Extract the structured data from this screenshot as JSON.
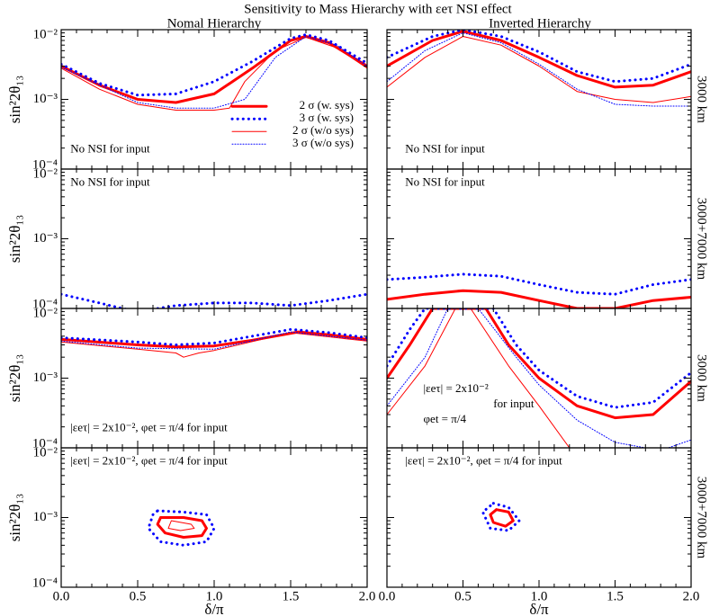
{
  "title": "Sensitivity to Mass Hierarchy with εeτ NSI effect",
  "column_titles": [
    "Nomal Hierarchy",
    "Inverted Hierarchy"
  ],
  "chart_data": [
    {
      "type": "line",
      "log_y": true,
      "xlim": [
        0,
        2
      ],
      "ylim": [
        0.0001,
        0.01
      ],
      "xticks": [
        0,
        0.5,
        1,
        1.5,
        2
      ],
      "yticks": [
        {
          "value": 0.0001,
          "label": "10⁻⁴"
        },
        {
          "value": 0.001,
          "label": "10⁻³"
        },
        {
          "value": 0.01,
          "label": "10⁻²"
        }
      ],
      "ylabel": "sin²2θ₁₃",
      "annotations": [
        "No NSI  for input"
      ],
      "legend": "center right",
      "series": [
        {
          "name": "2 σ (w. sys)",
          "color": "#ff0000",
          "width": 3,
          "dash": "solid",
          "x": [
            0,
            0.25,
            0.5,
            0.75,
            1,
            1.25,
            1.5,
            1.6,
            1.75,
            2
          ],
          "values": [
            0.003,
            0.0016,
            0.001,
            0.0009,
            0.0012,
            0.0028,
            0.007,
            0.008,
            0.0065,
            0.003
          ]
        },
        {
          "name": "3 σ (w. sys)",
          "color": "#0000ff",
          "width": 3,
          "dash": "dot",
          "x": [
            0,
            0.25,
            0.5,
            0.75,
            1,
            1.25,
            1.5,
            1.6,
            1.75,
            2
          ],
          "values": [
            0.0032,
            0.0017,
            0.00115,
            0.0012,
            0.0018,
            0.0035,
            0.0075,
            0.0085,
            0.007,
            0.0033
          ]
        },
        {
          "name": "2 σ (w/o sys)",
          "color": "#ff0000",
          "width": 1,
          "dash": "solid",
          "x": [
            0,
            0.25,
            0.5,
            0.75,
            1,
            1.1,
            1.2,
            1.4,
            1.6,
            1.8,
            2
          ],
          "values": [
            0.0028,
            0.0014,
            0.00085,
            0.0007,
            0.0007,
            0.00075,
            0.0018,
            0.005,
            0.0078,
            0.0055,
            0.0028
          ]
        },
        {
          "name": "3 σ (w/o sys)",
          "color": "#0000ff",
          "width": 1,
          "dash": "dot",
          "x": [
            0,
            0.5,
            0.75,
            1,
            1.2,
            1.4,
            1.6,
            1.8,
            2
          ],
          "values": [
            0.0029,
            0.0009,
            0.00075,
            0.00075,
            0.001,
            0.004,
            0.008,
            0.006,
            0.003
          ]
        }
      ]
    },
    {
      "type": "line",
      "log_y": true,
      "xlim": [
        0,
        2
      ],
      "ylim": [
        0.0001,
        0.01
      ],
      "xticks": [
        0,
        0.5,
        1,
        1.5,
        2
      ],
      "yticks": [
        0.0001,
        0.001,
        0.01
      ],
      "side_label": "3000 km",
      "annotations": [
        "No NSI  for input"
      ],
      "series": [
        {
          "color": "#ff0000",
          "width": 3,
          "dash": "solid",
          "x": [
            0,
            0.3,
            0.5,
            0.75,
            1,
            1.25,
            1.5,
            1.75,
            2
          ],
          "values": [
            0.003,
            0.007,
            0.0095,
            0.007,
            0.004,
            0.0022,
            0.0015,
            0.0016,
            0.0025
          ]
        },
        {
          "color": "#0000ff",
          "width": 3,
          "dash": "dot",
          "x": [
            0,
            0.3,
            0.5,
            0.75,
            1,
            1.25,
            1.5,
            1.75,
            2
          ],
          "values": [
            0.004,
            0.008,
            0.01,
            0.008,
            0.0048,
            0.0025,
            0.0018,
            0.002,
            0.0032
          ]
        },
        {
          "color": "#ff0000",
          "width": 1,
          "dash": "solid",
          "x": [
            0,
            0.25,
            0.5,
            0.75,
            1,
            1.25,
            1.5,
            1.75,
            2
          ],
          "values": [
            0.0015,
            0.004,
            0.008,
            0.006,
            0.003,
            0.0013,
            0.001,
            0.0009,
            0.0011
          ]
        },
        {
          "color": "#0000ff",
          "width": 1,
          "dash": "dot",
          "x": [
            0,
            0.25,
            0.5,
            0.75,
            1,
            1.25,
            1.5,
            1.75,
            2
          ],
          "values": [
            0.0018,
            0.005,
            0.009,
            0.0065,
            0.0032,
            0.0014,
            0.00085,
            0.0008,
            0.0008
          ]
        }
      ]
    },
    {
      "type": "line",
      "log_y": true,
      "xlim": [
        0,
        2
      ],
      "ylim": [
        0.0001,
        0.01
      ],
      "xticks": [
        0,
        0.5,
        1,
        1.5,
        2
      ],
      "yticks": [
        {
          "value": 0.0001,
          "label": "10⁻⁴"
        },
        {
          "value": 0.001,
          "label": "10⁻³"
        },
        {
          "value": 0.01,
          "label": "10⁻²"
        }
      ],
      "ylabel": "sin²2θ₁₃",
      "annotations": [
        "No NSI  for input"
      ],
      "series": [
        {
          "color": "#0000ff",
          "width": 3,
          "dash": "dot",
          "x": [
            0,
            0.25,
            0.4,
            0.5,
            0.75,
            1,
            1.25,
            1.5,
            1.75,
            2
          ],
          "values": [
            0.00016,
            0.00012,
            0.0001,
            9e-05,
            0.00011,
            0.00012,
            0.00012,
            0.00011,
            0.00013,
            0.00016
          ]
        }
      ]
    },
    {
      "type": "line",
      "log_y": true,
      "xlim": [
        0,
        2
      ],
      "ylim": [
        0.0001,
        0.01
      ],
      "xticks": [
        0,
        0.5,
        1,
        1.5,
        2
      ],
      "yticks": [
        0.0001,
        0.001,
        0.01
      ],
      "side_label": "3000+7000 km",
      "annotations": [
        "No NSI  for input"
      ],
      "series": [
        {
          "color": "#ff0000",
          "width": 3,
          "dash": "solid",
          "x": [
            0,
            0.25,
            0.5,
            0.75,
            1,
            1.25,
            1.5,
            1.75,
            2
          ],
          "values": [
            0.000135,
            0.00016,
            0.00018,
            0.00017,
            0.00013,
            0.0001,
            0.0001,
            0.00013,
            0.000145
          ]
        },
        {
          "color": "#0000ff",
          "width": 3,
          "dash": "dot",
          "x": [
            0,
            0.25,
            0.5,
            0.75,
            1,
            1.25,
            1.5,
            1.75,
            2
          ],
          "values": [
            0.00026,
            0.00028,
            0.00031,
            0.00029,
            0.00022,
            0.00017,
            0.00016,
            0.00022,
            0.00026
          ]
        }
      ]
    },
    {
      "type": "line",
      "log_y": true,
      "xlim": [
        0,
        2
      ],
      "ylim": [
        0.0001,
        0.01
      ],
      "xticks": [
        0,
        0.5,
        1,
        1.5,
        2
      ],
      "yticks": [
        {
          "value": 0.0001,
          "label": "10⁻⁴"
        },
        {
          "value": 0.001,
          "label": "10⁻³"
        },
        {
          "value": 0.01,
          "label": "10⁻²"
        }
      ],
      "ylabel": "sin²2θ₁₃",
      "annotations": [
        "|εeτ| = 2x10⁻², φet = π/4 for input"
      ],
      "series": [
        {
          "color": "#ff0000",
          "width": 3,
          "dash": "solid",
          "x": [
            0,
            0.5,
            0.75,
            1,
            1.25,
            1.55,
            1.75,
            2
          ],
          "values": [
            0.0036,
            0.003,
            0.0028,
            0.0029,
            0.0035,
            0.0046,
            0.0042,
            0.0036
          ]
        },
        {
          "color": "#0000ff",
          "width": 3,
          "dash": "dot",
          "x": [
            0,
            0.5,
            0.75,
            1,
            1.25,
            1.5,
            1.75,
            2
          ],
          "values": [
            0.0038,
            0.0033,
            0.003,
            0.0032,
            0.004,
            0.005,
            0.0045,
            0.0038
          ]
        },
        {
          "color": "#ff0000",
          "width": 1,
          "dash": "solid",
          "x": [
            0,
            0.5,
            0.75,
            0.8,
            0.9,
            1,
            1.5,
            2
          ],
          "values": [
            0.0033,
            0.0026,
            0.0023,
            0.002,
            0.0023,
            0.0025,
            0.0045,
            0.0034
          ]
        },
        {
          "color": "#0000ff",
          "width": 1,
          "dash": "dot",
          "x": [
            0,
            0.5,
            1,
            1.5,
            2
          ],
          "values": [
            0.0034,
            0.0027,
            0.0026,
            0.0046,
            0.0035
          ]
        }
      ]
    },
    {
      "type": "line",
      "log_y": true,
      "xlim": [
        0,
        2
      ],
      "ylim": [
        0.0001,
        0.01
      ],
      "xticks": [
        0,
        0.5,
        1,
        1.5,
        2
      ],
      "yticks": [
        0.0001,
        0.001,
        0.01
      ],
      "side_label": "3000 km",
      "annotations": [
        "|εeτ| = 2x10⁻²",
        "for input",
        "φet = π/4"
      ],
      "series": [
        {
          "color": "#ff0000",
          "width": 3,
          "dash": "solid",
          "x": [
            0,
            0.15,
            0.3,
            0.65,
            0.8,
            1,
            1.25,
            1.5,
            1.75,
            2
          ],
          "values": [
            0.001,
            0.003,
            0.01,
            0.01,
            0.003,
            0.001,
            0.0004,
            0.00027,
            0.0003,
            0.0009
          ]
        },
        {
          "color": "#0000ff",
          "width": 3,
          "dash": "dot",
          "x": [
            0,
            0.15,
            0.25,
            0.7,
            0.85,
            1,
            1.25,
            1.5,
            1.75,
            2
          ],
          "values": [
            0.0015,
            0.005,
            0.01,
            0.01,
            0.003,
            0.0013,
            0.00055,
            0.00038,
            0.00045,
            0.0012
          ]
        },
        {
          "color": "#ff0000",
          "width": 1,
          "dash": "solid",
          "x": [
            0,
            0.25,
            0.45,
            0.55,
            0.8,
            1,
            1.2
          ],
          "values": [
            0.0003,
            0.0015,
            0.01,
            0.01,
            0.0015,
            0.0004,
            0.0001
          ]
        },
        {
          "color": "#0000ff",
          "width": 1,
          "dash": "dot",
          "x": [
            0,
            0.25,
            0.4,
            0.6,
            0.85,
            1,
            1.25,
            1.5,
            1.7,
            1.85,
            2
          ],
          "values": [
            0.0004,
            0.002,
            0.01,
            0.01,
            0.002,
            0.0008,
            0.00025,
            0.00012,
            0.0001,
            0.0001,
            0.00013
          ]
        }
      ]
    },
    {
      "type": "line",
      "log_y": true,
      "xlim": [
        0,
        2
      ],
      "ylim": [
        0.0001,
        0.01
      ],
      "xticks": [
        {
          "value": 0,
          "label": "0.0"
        },
        {
          "value": 0.5,
          "label": "0.5"
        },
        {
          "value": 1,
          "label": "1.0"
        },
        {
          "value": 1.5,
          "label": "1.5"
        },
        {
          "value": 2,
          "label": "2.0"
        }
      ],
      "yticks": [
        {
          "value": 0.0001,
          "label": "10⁻⁴"
        },
        {
          "value": 0.001,
          "label": "10⁻³"
        },
        {
          "value": 0.01,
          "label": "10⁻²"
        }
      ],
      "ylabel": "sin²2θ₁₃",
      "xlabel": "δ/π",
      "annotations": [
        "|εeτ| = 2x10⁻², φet = π/4 for input"
      ],
      "series": [
        {
          "color": "#ff0000",
          "width": 3,
          "dash": "solid",
          "x": [
            0.65,
            0.8,
            0.92,
            0.95,
            0.92,
            0.8,
            0.68,
            0.63,
            0.65
          ],
          "values": [
            0.001,
            0.001,
            0.0009,
            0.0007,
            0.00055,
            0.00052,
            0.0006,
            0.0008,
            0.001
          ]
        },
        {
          "color": "#0000ff",
          "width": 3,
          "dash": "dot",
          "x": [
            0.63,
            0.8,
            0.95,
            1,
            0.95,
            0.8,
            0.65,
            0.57,
            0.6,
            0.63
          ],
          "values": [
            0.00125,
            0.0012,
            0.0011,
            0.0007,
            0.00045,
            0.0004,
            0.00045,
            0.0007,
            0.0011,
            0.00125
          ]
        },
        {
          "color": "#ff0000",
          "width": 1,
          "dash": "solid",
          "x": [
            0.72,
            0.85,
            0.87,
            0.78,
            0.7,
            0.72
          ],
          "values": [
            0.0009,
            0.0008,
            0.0007,
            0.00065,
            0.0007,
            0.0009
          ]
        }
      ]
    },
    {
      "type": "line",
      "log_y": true,
      "xlim": [
        0,
        2
      ],
      "ylim": [
        0.0001,
        0.01
      ],
      "xticks": [
        {
          "value": 0,
          "label": "0.0"
        },
        {
          "value": 0.5,
          "label": "0.5"
        },
        {
          "value": 1,
          "label": "1.0"
        },
        {
          "value": 1.5,
          "label": "1.5"
        },
        {
          "value": 2,
          "label": "2.0"
        }
      ],
      "yticks": [
        0.0001,
        0.001,
        0.01
      ],
      "xlabel": "δ/π",
      "side_label": "3000+7000 km",
      "annotations": [
        "|εeτ| = 2x10⁻², φet = π/4 for input"
      ],
      "series": [
        {
          "color": "#ff0000",
          "width": 3,
          "dash": "solid",
          "x": [
            0.72,
            0.8,
            0.83,
            0.78,
            0.7,
            0.68,
            0.72
          ],
          "values": [
            0.0013,
            0.0012,
            0.0009,
            0.00075,
            0.00085,
            0.0011,
            0.0013
          ]
        },
        {
          "color": "#0000ff",
          "width": 3,
          "dash": "dot",
          "x": [
            0.7,
            0.8,
            0.87,
            0.8,
            0.68,
            0.63,
            0.7
          ],
          "values": [
            0.0016,
            0.0014,
            0.0009,
            0.00065,
            0.0007,
            0.0012,
            0.0016
          ]
        }
      ]
    }
  ]
}
